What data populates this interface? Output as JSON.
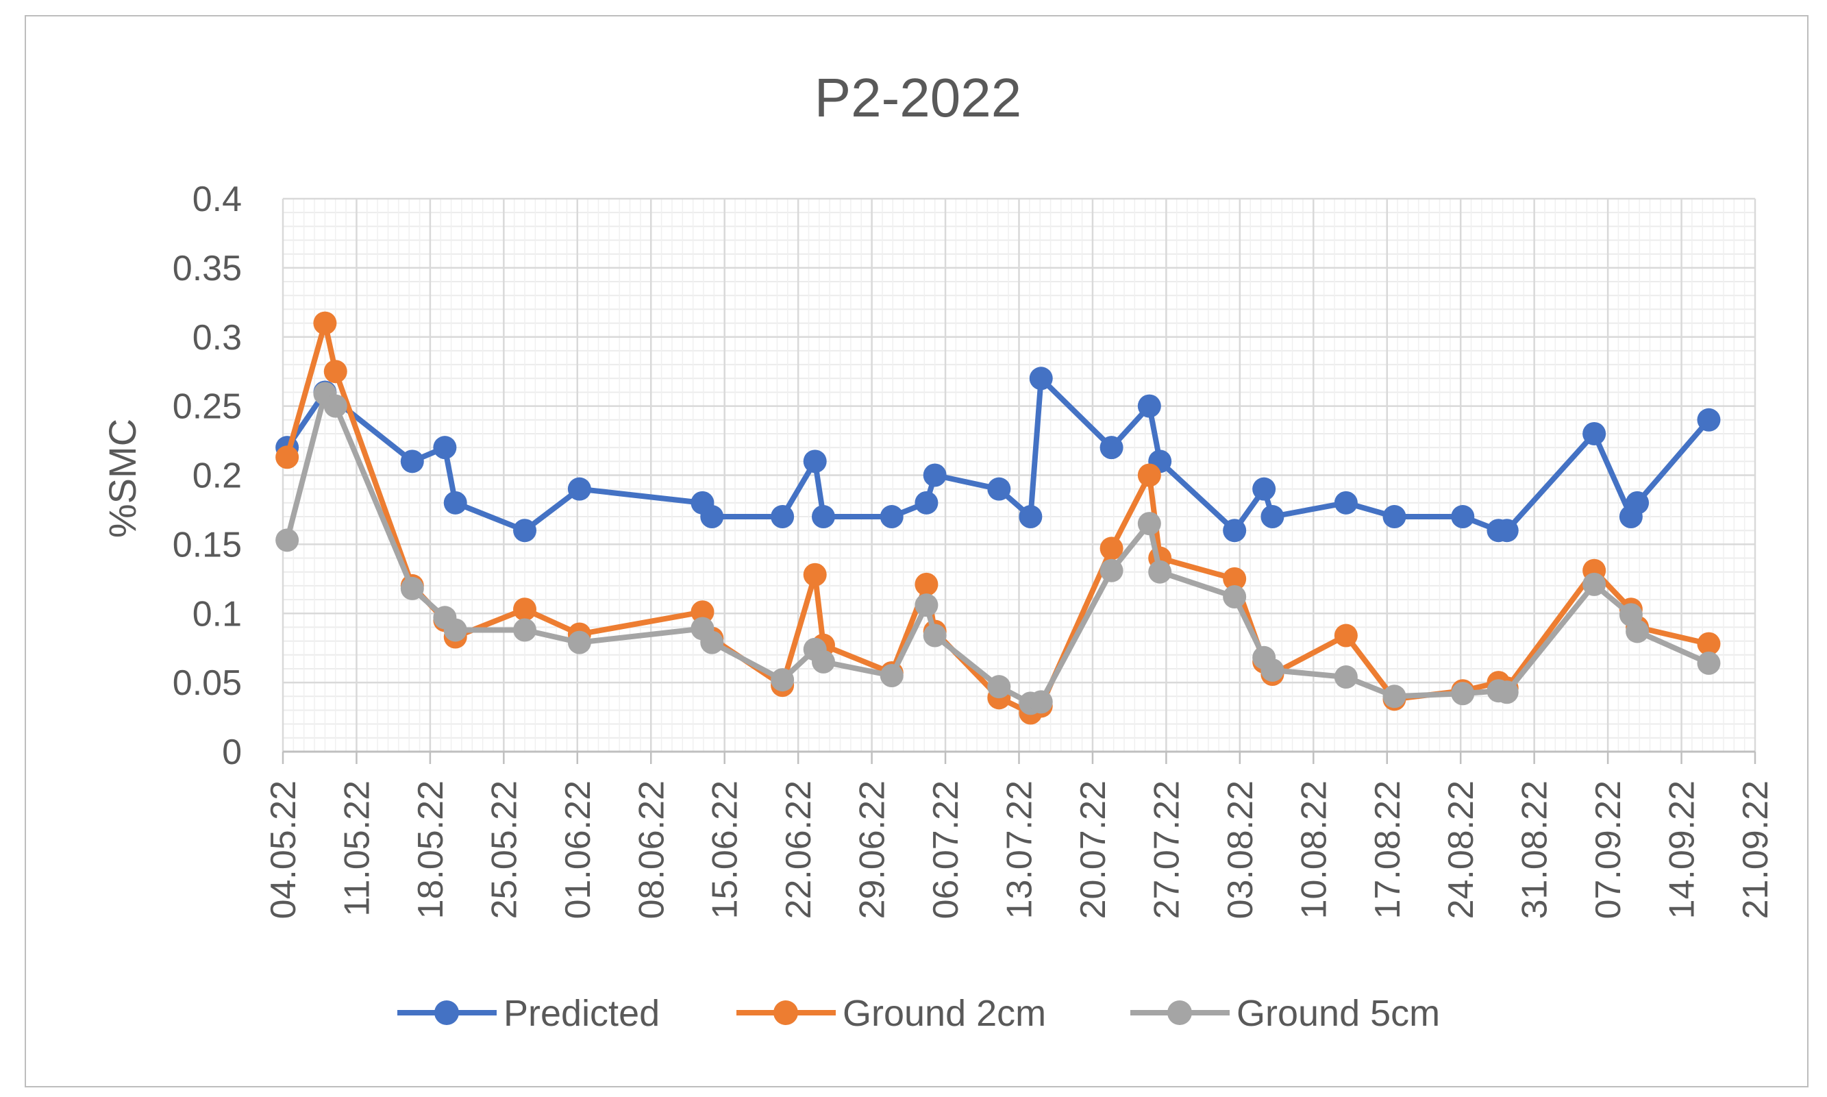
{
  "chart_data": {
    "type": "line",
    "title": "P2-2022",
    "ylabel": "%SMC",
    "xlabel": "",
    "ylim": [
      0,
      0.4
    ],
    "y_ticks": [
      "0",
      "0.05",
      "0.1",
      "0.15",
      "0.2",
      "0.25",
      "0.3",
      "0.35",
      "0.4"
    ],
    "x_tick_labels": [
      "04.05.22",
      "11.05.22",
      "18.05.22",
      "25.05.22",
      "01.06.22",
      "08.06.22",
      "15.06.22",
      "22.06.22",
      "29.06.22",
      "06.07.22",
      "13.07.22",
      "20.07.22",
      "27.07.22",
      "03.08.22",
      "10.08.22",
      "17.08.22",
      "24.08.22",
      "31.08.22",
      "07.09.22",
      "14.09.22",
      "21.09.22"
    ],
    "x_axis": "date (day offset from 04.05.22, tick every 7 days)",
    "grid": true,
    "legend_position": "bottom",
    "series": [
      {
        "name": "Predicted",
        "color": "#4472C4",
        "points": [
          [
            0.4,
            0.22
          ],
          [
            4,
            0.26
          ],
          [
            12.3,
            0.21
          ],
          [
            15.4,
            0.22
          ],
          [
            16.4,
            0.18
          ],
          [
            23,
            0.16
          ],
          [
            28.2,
            0.19
          ],
          [
            39.9,
            0.18
          ],
          [
            40.8,
            0.17
          ],
          [
            47.5,
            0.17
          ],
          [
            50.6,
            0.21
          ],
          [
            51.4,
            0.17
          ],
          [
            57.9,
            0.17
          ],
          [
            61.2,
            0.18
          ],
          [
            62,
            0.2
          ],
          [
            68.1,
            0.19
          ],
          [
            71.1,
            0.17
          ],
          [
            72.1,
            0.27
          ],
          [
            78.8,
            0.22
          ],
          [
            82.4,
            0.25
          ],
          [
            83.4,
            0.21
          ],
          [
            90.5,
            0.16
          ],
          [
            93.3,
            0.19
          ],
          [
            94.1,
            0.17
          ],
          [
            101.1,
            0.18
          ],
          [
            105.7,
            0.17
          ],
          [
            112.2,
            0.17
          ],
          [
            115.6,
            0.16
          ],
          [
            116.4,
            0.16
          ],
          [
            124.7,
            0.23
          ],
          [
            128.2,
            0.17
          ],
          [
            128.8,
            0.18
          ],
          [
            135.6,
            0.24
          ]
        ]
      },
      {
        "name": "Ground 2cm",
        "color": "#ED7D31",
        "points": [
          [
            0.4,
            0.213
          ],
          [
            4,
            0.31
          ],
          [
            5,
            0.275
          ],
          [
            12.3,
            0.12
          ],
          [
            15.4,
            0.095
          ],
          [
            16.4,
            0.083
          ],
          [
            23,
            0.103
          ],
          [
            28.2,
            0.085
          ],
          [
            39.9,
            0.101
          ],
          [
            40.8,
            0.082
          ],
          [
            47.5,
            0.048
          ],
          [
            50.6,
            0.128
          ],
          [
            51.4,
            0.077
          ],
          [
            57.9,
            0.057
          ],
          [
            61.2,
            0.121
          ],
          [
            62,
            0.087
          ],
          [
            68.1,
            0.039
          ],
          [
            71.1,
            0.028
          ],
          [
            72.1,
            0.033
          ],
          [
            78.8,
            0.147
          ],
          [
            82.4,
            0.2
          ],
          [
            83.4,
            0.14
          ],
          [
            90.5,
            0.125
          ],
          [
            93.3,
            0.065
          ],
          [
            94.1,
            0.056
          ],
          [
            101.1,
            0.084
          ],
          [
            105.7,
            0.038
          ],
          [
            112.2,
            0.044
          ],
          [
            115.6,
            0.05
          ],
          [
            116.4,
            0.046
          ],
          [
            124.7,
            0.131
          ],
          [
            128.2,
            0.103
          ],
          [
            128.8,
            0.09
          ],
          [
            135.6,
            0.078
          ]
        ]
      },
      {
        "name": "Ground 5cm",
        "color": "#A5A5A5",
        "points": [
          [
            0.4,
            0.153
          ],
          [
            4,
            0.259
          ],
          [
            5,
            0.25
          ],
          [
            12.3,
            0.118
          ],
          [
            15.4,
            0.097
          ],
          [
            16.4,
            0.088
          ],
          [
            23,
            0.088
          ],
          [
            28.2,
            0.079
          ],
          [
            39.9,
            0.089
          ],
          [
            40.8,
            0.079
          ],
          [
            47.5,
            0.052
          ],
          [
            50.6,
            0.074
          ],
          [
            51.4,
            0.065
          ],
          [
            57.9,
            0.055
          ],
          [
            61.2,
            0.106
          ],
          [
            62,
            0.084
          ],
          [
            68.1,
            0.047
          ],
          [
            71.1,
            0.035
          ],
          [
            72.1,
            0.036
          ],
          [
            78.8,
            0.131
          ],
          [
            82.4,
            0.165
          ],
          [
            83.4,
            0.13
          ],
          [
            90.5,
            0.112
          ],
          [
            93.3,
            0.068
          ],
          [
            94.1,
            0.059
          ],
          [
            101.1,
            0.054
          ],
          [
            105.7,
            0.04
          ],
          [
            112.2,
            0.042
          ],
          [
            115.6,
            0.044
          ],
          [
            116.4,
            0.043
          ],
          [
            124.7,
            0.121
          ],
          [
            128.2,
            0.099
          ],
          [
            128.8,
            0.087
          ],
          [
            135.6,
            0.064
          ]
        ]
      }
    ]
  }
}
